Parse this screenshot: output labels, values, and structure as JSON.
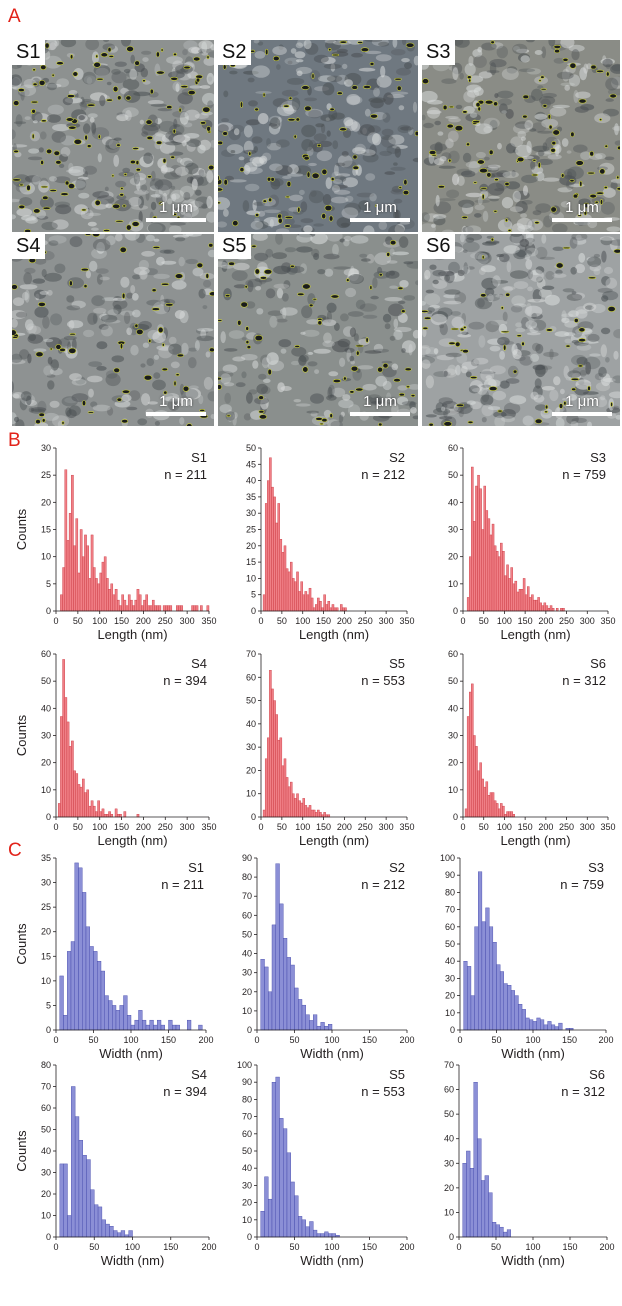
{
  "panels": {
    "a": "A",
    "b": "B",
    "c": "C"
  },
  "micrographs": [
    {
      "label": "S1",
      "scale": "1 μm",
      "tone": "#8d9190",
      "contrast": 1.2,
      "pores": 0.9
    },
    {
      "label": "S2",
      "scale": "1 μm",
      "tone": "#6f7880",
      "contrast": 1.0,
      "pores": 0.6
    },
    {
      "label": "S3",
      "scale": "1 μm",
      "tone": "#8a8c86",
      "contrast": 1.0,
      "pores": 0.7
    },
    {
      "label": "S4",
      "scale": "1 μm",
      "tone": "#8e9292",
      "contrast": 0.9,
      "pores": 0.5
    },
    {
      "label": "S5",
      "scale": "1 μm",
      "tone": "#8a8f8d",
      "contrast": 0.9,
      "pores": 0.5
    },
    {
      "label": "S6",
      "scale": "1 μm",
      "tone": "#9ea2a3",
      "contrast": 1.3,
      "pores": 0.4
    }
  ],
  "colors": {
    "length_bars": "#f07f86",
    "length_edge": "#c9363f",
    "width_bars": "#8b8fd6",
    "width_edge": "#3f44a8"
  },
  "chart_data": [
    {
      "type": "bar",
      "panel": "B",
      "sample": "S1",
      "n_label": "n = 211",
      "xlabel": "Length (nm)",
      "ylabel": "Counts",
      "xlim": [
        0,
        350
      ],
      "ylim": [
        0,
        30
      ],
      "yticks": [
        0,
        5,
        10,
        15,
        20,
        25,
        30
      ],
      "xticks": [
        0,
        50,
        100,
        150,
        200,
        250,
        300,
        350
      ],
      "bin_width": 5,
      "bin_start": 10,
      "values": [
        3,
        8,
        26,
        13,
        18,
        25,
        12,
        17,
        7,
        15,
        10,
        14,
        12,
        6,
        14,
        8,
        6,
        5,
        7,
        9,
        10,
        6,
        4,
        5,
        3,
        4,
        2,
        1,
        3,
        2,
        1,
        3,
        2,
        1,
        2,
        4,
        3,
        1,
        2,
        3,
        1,
        1,
        2,
        1,
        1,
        1,
        0,
        1,
        1,
        1,
        1,
        0,
        0,
        1,
        1,
        1,
        0,
        0,
        0,
        0,
        1,
        1,
        1,
        0,
        1,
        0,
        0,
        1
      ]
    },
    {
      "type": "bar",
      "panel": "B",
      "sample": "S2",
      "n_label": "n = 212",
      "xlabel": "Length (nm)",
      "ylabel": "",
      "xlim": [
        0,
        350
      ],
      "ylim": [
        0,
        50
      ],
      "yticks": [
        0,
        5,
        10,
        15,
        20,
        25,
        30,
        35,
        40,
        45,
        50
      ],
      "xticks": [
        0,
        50,
        100,
        150,
        200,
        250,
        300,
        350
      ],
      "bin_width": 5,
      "bin_start": 5,
      "values": [
        5,
        33,
        40,
        47,
        38,
        35,
        27,
        33,
        22,
        18,
        20,
        13,
        12,
        15,
        10,
        9,
        12,
        6,
        9,
        5,
        6,
        5,
        7,
        4,
        1,
        2,
        4,
        3,
        1,
        5,
        2,
        3,
        1,
        2,
        1,
        1,
        0,
        2,
        1,
        1
      ]
    },
    {
      "type": "bar",
      "panel": "B",
      "sample": "S3",
      "n_label": "n = 759",
      "xlabel": "Length (nm)",
      "ylabel": "",
      "xlim": [
        0,
        350
      ],
      "ylim": [
        0,
        60
      ],
      "yticks": [
        0,
        10,
        20,
        30,
        40,
        50,
        60
      ],
      "xticks": [
        0,
        50,
        100,
        150,
        200,
        250,
        300,
        350
      ],
      "bin_width": 5,
      "bin_start": 10,
      "values": [
        5,
        20,
        53,
        33,
        46,
        50,
        45,
        30,
        46,
        37,
        34,
        28,
        32,
        24,
        22,
        20,
        25,
        22,
        13,
        17,
        12,
        16,
        10,
        11,
        7,
        8,
        8,
        12,
        6,
        9,
        5,
        6,
        4,
        4,
        5,
        3,
        2,
        3,
        2,
        1,
        2,
        1,
        0,
        1,
        0,
        1,
        1
      ]
    },
    {
      "type": "bar",
      "panel": "B",
      "sample": "S4",
      "n_label": "n = 394",
      "xlabel": "Length (nm)",
      "ylabel": "Counts",
      "xlim": [
        0,
        350
      ],
      "ylim": [
        0,
        60
      ],
      "yticks": [
        0,
        10,
        20,
        30,
        40,
        50,
        60
      ],
      "xticks": [
        0,
        50,
        100,
        150,
        200,
        250,
        300,
        350
      ],
      "bin_width": 5,
      "bin_start": 5,
      "values": [
        5,
        37,
        58,
        44,
        35,
        26,
        28,
        17,
        16,
        12,
        11,
        14,
        9,
        10,
        4,
        6,
        4,
        2,
        6,
        2,
        3,
        1,
        1,
        2,
        1,
        0,
        3,
        1,
        1,
        0,
        2,
        0,
        0,
        0,
        0,
        0,
        1
      ]
    },
    {
      "type": "bar",
      "panel": "B",
      "sample": "S5",
      "n_label": "n = 553",
      "xlabel": "Length (nm)",
      "ylabel": "",
      "xlim": [
        0,
        350
      ],
      "ylim": [
        0,
        70
      ],
      "yticks": [
        0,
        10,
        20,
        30,
        40,
        50,
        60,
        70
      ],
      "xticks": [
        0,
        50,
        100,
        150,
        200,
        250,
        300,
        350
      ],
      "bin_width": 5,
      "bin_start": 5,
      "values": [
        3,
        25,
        34,
        63,
        55,
        50,
        44,
        33,
        34,
        22,
        25,
        17,
        13,
        15,
        10,
        8,
        10,
        7,
        6,
        8,
        5,
        4,
        5,
        3,
        3,
        2,
        3,
        2,
        1,
        2,
        1,
        1
      ]
    },
    {
      "type": "bar",
      "panel": "B",
      "sample": "S6",
      "n_label": "n = 312",
      "xlabel": "Length (nm)",
      "ylabel": "",
      "xlim": [
        0,
        350
      ],
      "ylim": [
        0,
        60
      ],
      "yticks": [
        0,
        10,
        20,
        30,
        40,
        50,
        60
      ],
      "xticks": [
        0,
        50,
        100,
        150,
        200,
        250,
        300,
        350
      ],
      "bin_width": 5,
      "bin_start": 5,
      "values": [
        3,
        37,
        46,
        49,
        30,
        26,
        17,
        20,
        14,
        11,
        13,
        8,
        9,
        9,
        6,
        5,
        3,
        5,
        4,
        1,
        2,
        2,
        2,
        1
      ]
    },
    {
      "type": "bar",
      "panel": "C",
      "sample": "S1",
      "n_label": "n = 211",
      "xlabel": "Width (nm)",
      "ylabel": "Counts",
      "xlim": [
        0,
        200
      ],
      "ylim": [
        0,
        35
      ],
      "yticks": [
        0,
        5,
        10,
        15,
        20,
        25,
        30,
        35
      ],
      "xticks": [
        0,
        50,
        100,
        150,
        200
      ],
      "bin_width": 5,
      "bin_start": 5,
      "values": [
        11,
        3,
        16,
        18,
        34,
        33,
        28,
        21,
        17,
        16,
        14,
        12,
        7,
        6,
        5,
        4,
        5,
        7,
        3,
        1,
        2,
        4,
        2,
        1,
        2,
        1,
        2,
        1,
        0,
        2,
        1,
        1,
        0,
        0,
        2,
        0,
        0,
        1
      ]
    },
    {
      "type": "bar",
      "panel": "C",
      "sample": "S2",
      "n_label": "n = 212",
      "xlabel": "Width (nm)",
      "ylabel": "",
      "xlim": [
        0,
        200
      ],
      "ylim": [
        0,
        90
      ],
      "yticks": [
        0,
        10,
        20,
        30,
        40,
        50,
        60,
        70,
        80,
        90
      ],
      "xticks": [
        0,
        50,
        100,
        150,
        200
      ],
      "bin_width": 5,
      "bin_start": 5,
      "values": [
        37,
        33,
        20,
        55,
        87,
        66,
        48,
        38,
        34,
        22,
        16,
        13,
        8,
        5,
        8,
        2,
        4,
        2,
        3
      ]
    },
    {
      "type": "bar",
      "panel": "C",
      "sample": "S3",
      "n_label": "n = 759",
      "xlabel": "Width (nm)",
      "ylabel": "",
      "xlim": [
        0,
        200
      ],
      "ylim": [
        0,
        100
      ],
      "yticks": [
        0,
        10,
        20,
        30,
        40,
        50,
        60,
        70,
        80,
        90,
        100
      ],
      "xticks": [
        0,
        50,
        100,
        150,
        200
      ],
      "bin_width": 5,
      "bin_start": 5,
      "values": [
        40,
        37,
        20,
        60,
        92,
        63,
        71,
        60,
        51,
        38,
        34,
        27,
        26,
        23,
        20,
        15,
        12,
        7,
        6,
        5,
        7,
        6,
        3,
        5,
        3,
        2,
        4,
        0,
        1,
        1
      ]
    },
    {
      "type": "bar",
      "panel": "C",
      "sample": "S4",
      "n_label": "n = 394",
      "xlabel": "Width (nm)",
      "ylabel": "Counts",
      "xlim": [
        0,
        200
      ],
      "ylim": [
        0,
        80
      ],
      "yticks": [
        0,
        10,
        20,
        30,
        40,
        50,
        60,
        70,
        80
      ],
      "xticks": [
        0,
        50,
        100,
        150,
        200
      ],
      "bin_width": 5,
      "bin_start": 5,
      "values": [
        34,
        34,
        10,
        70,
        56,
        45,
        38,
        36,
        22,
        15,
        14,
        8,
        6,
        5,
        3,
        2,
        3,
        1,
        3
      ]
    },
    {
      "type": "bar",
      "panel": "C",
      "sample": "S5",
      "n_label": "n = 553",
      "xlabel": "Width (nm)",
      "ylabel": "",
      "xlim": [
        0,
        200
      ],
      "ylim": [
        0,
        100
      ],
      "yticks": [
        0,
        10,
        20,
        30,
        40,
        50,
        60,
        70,
        80,
        90,
        100
      ],
      "xticks": [
        0,
        50,
        100,
        150,
        200
      ],
      "bin_width": 5,
      "bin_start": 5,
      "values": [
        15,
        35,
        22,
        90,
        93,
        69,
        63,
        49,
        32,
        24,
        12,
        10,
        6,
        9,
        4,
        2,
        2,
        3,
        2,
        2,
        1
      ]
    },
    {
      "type": "bar",
      "panel": "C",
      "sample": "S6",
      "n_label": "n = 312",
      "xlabel": "Width (nm)",
      "ylabel": "",
      "xlim": [
        0,
        200
      ],
      "ylim": [
        0,
        70
      ],
      "yticks": [
        0,
        10,
        20,
        30,
        40,
        50,
        60,
        70
      ],
      "xticks": [
        0,
        50,
        100,
        150,
        200
      ],
      "bin_width": 5,
      "bin_start": 5,
      "values": [
        30,
        35,
        28,
        63,
        40,
        23,
        25,
        18,
        6,
        5,
        4,
        2,
        3
      ]
    }
  ]
}
